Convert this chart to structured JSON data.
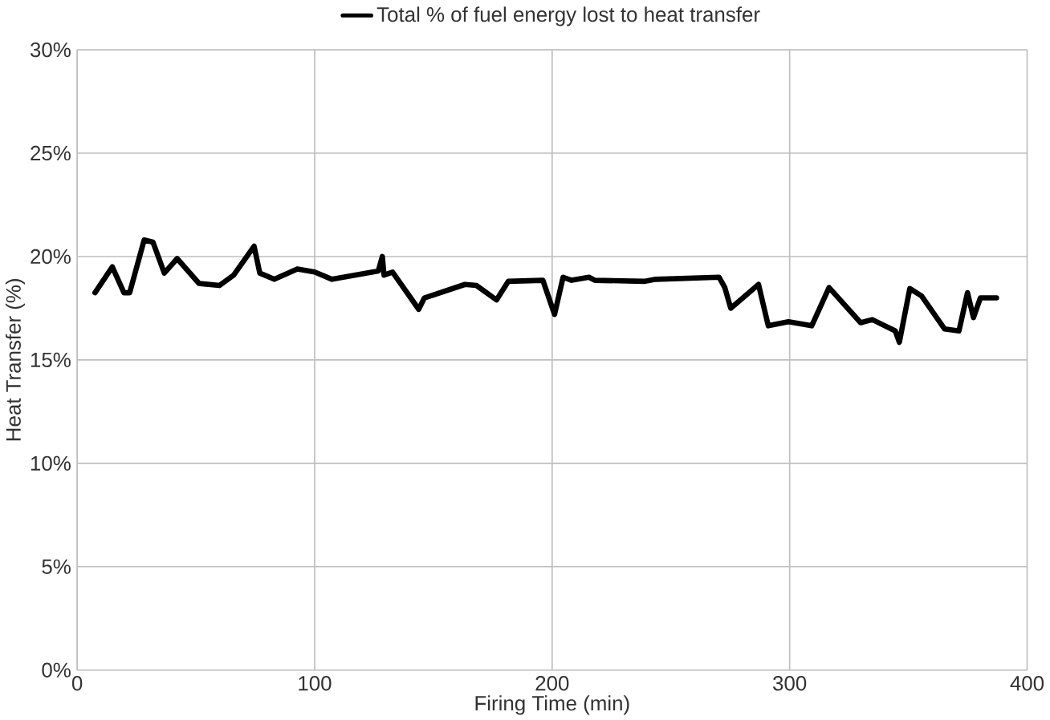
{
  "chart_data": {
    "type": "line",
    "xlabel": "Firing Time (min)",
    "ylabel": "Heat Transfer (%)",
    "xlim": [
      0,
      400
    ],
    "xticks": [
      0,
      100,
      200,
      300,
      400
    ],
    "ylim": [
      0,
      30
    ],
    "yticks": [
      {
        "value": 0,
        "label": "0%"
      },
      {
        "value": 5,
        "label": "5%"
      },
      {
        "value": 10,
        "label": "10%"
      },
      {
        "value": 15,
        "label": "15%"
      },
      {
        "value": 20,
        "label": "20%"
      },
      {
        "value": 25,
        "label": "25%"
      },
      {
        "value": 30,
        "label": "30%"
      }
    ],
    "grid": true,
    "legend": "top",
    "marker": "none",
    "line_style": "solid",
    "series": [
      {
        "name": "Total % of fuel energy lost to heat transfer",
        "color": "#000000",
        "x": [
          7.5,
          14.8,
          19.7,
          22.1,
          28.2,
          31.9,
          36.7,
          42.1,
          51.3,
          59.9,
          65.9,
          74.5,
          76.9,
          83,
          92.7,
          100,
          107.3,
          126.8,
          128.5,
          129.2,
          132.8,
          143.8,
          146.2,
          163.3,
          168.1,
          176.6,
          181.5,
          196.1,
          201,
          204.6,
          208.2,
          215.5,
          218,
          238.7,
          243.6,
          270.3,
          272.7,
          275.2,
          286.9,
          291,
          299.5,
          309.3,
          316.6,
          329.9,
          334.8,
          344.5,
          346.2,
          350.6,
          355.5,
          365.2,
          371.3,
          374.9,
          377.4,
          380.3,
          387.1
        ],
        "values": [
          18.25,
          19.5,
          18.25,
          18.25,
          20.8,
          20.7,
          19.2,
          19.9,
          18.7,
          18.6,
          19.1,
          20.5,
          19.2,
          18.9,
          19.4,
          19.25,
          18.9,
          19.3,
          20,
          19.1,
          19.25,
          17.45,
          18,
          18.65,
          18.6,
          17.9,
          18.8,
          18.85,
          17.2,
          19,
          18.85,
          19,
          18.85,
          18.8,
          18.9,
          19,
          18.5,
          17.5,
          18.65,
          16.65,
          16.85,
          16.65,
          18.5,
          16.8,
          16.95,
          16.4,
          15.85,
          18.45,
          18.1,
          16.5,
          16.4,
          18.25,
          17.05,
          18,
          18
        ]
      }
    ]
  }
}
